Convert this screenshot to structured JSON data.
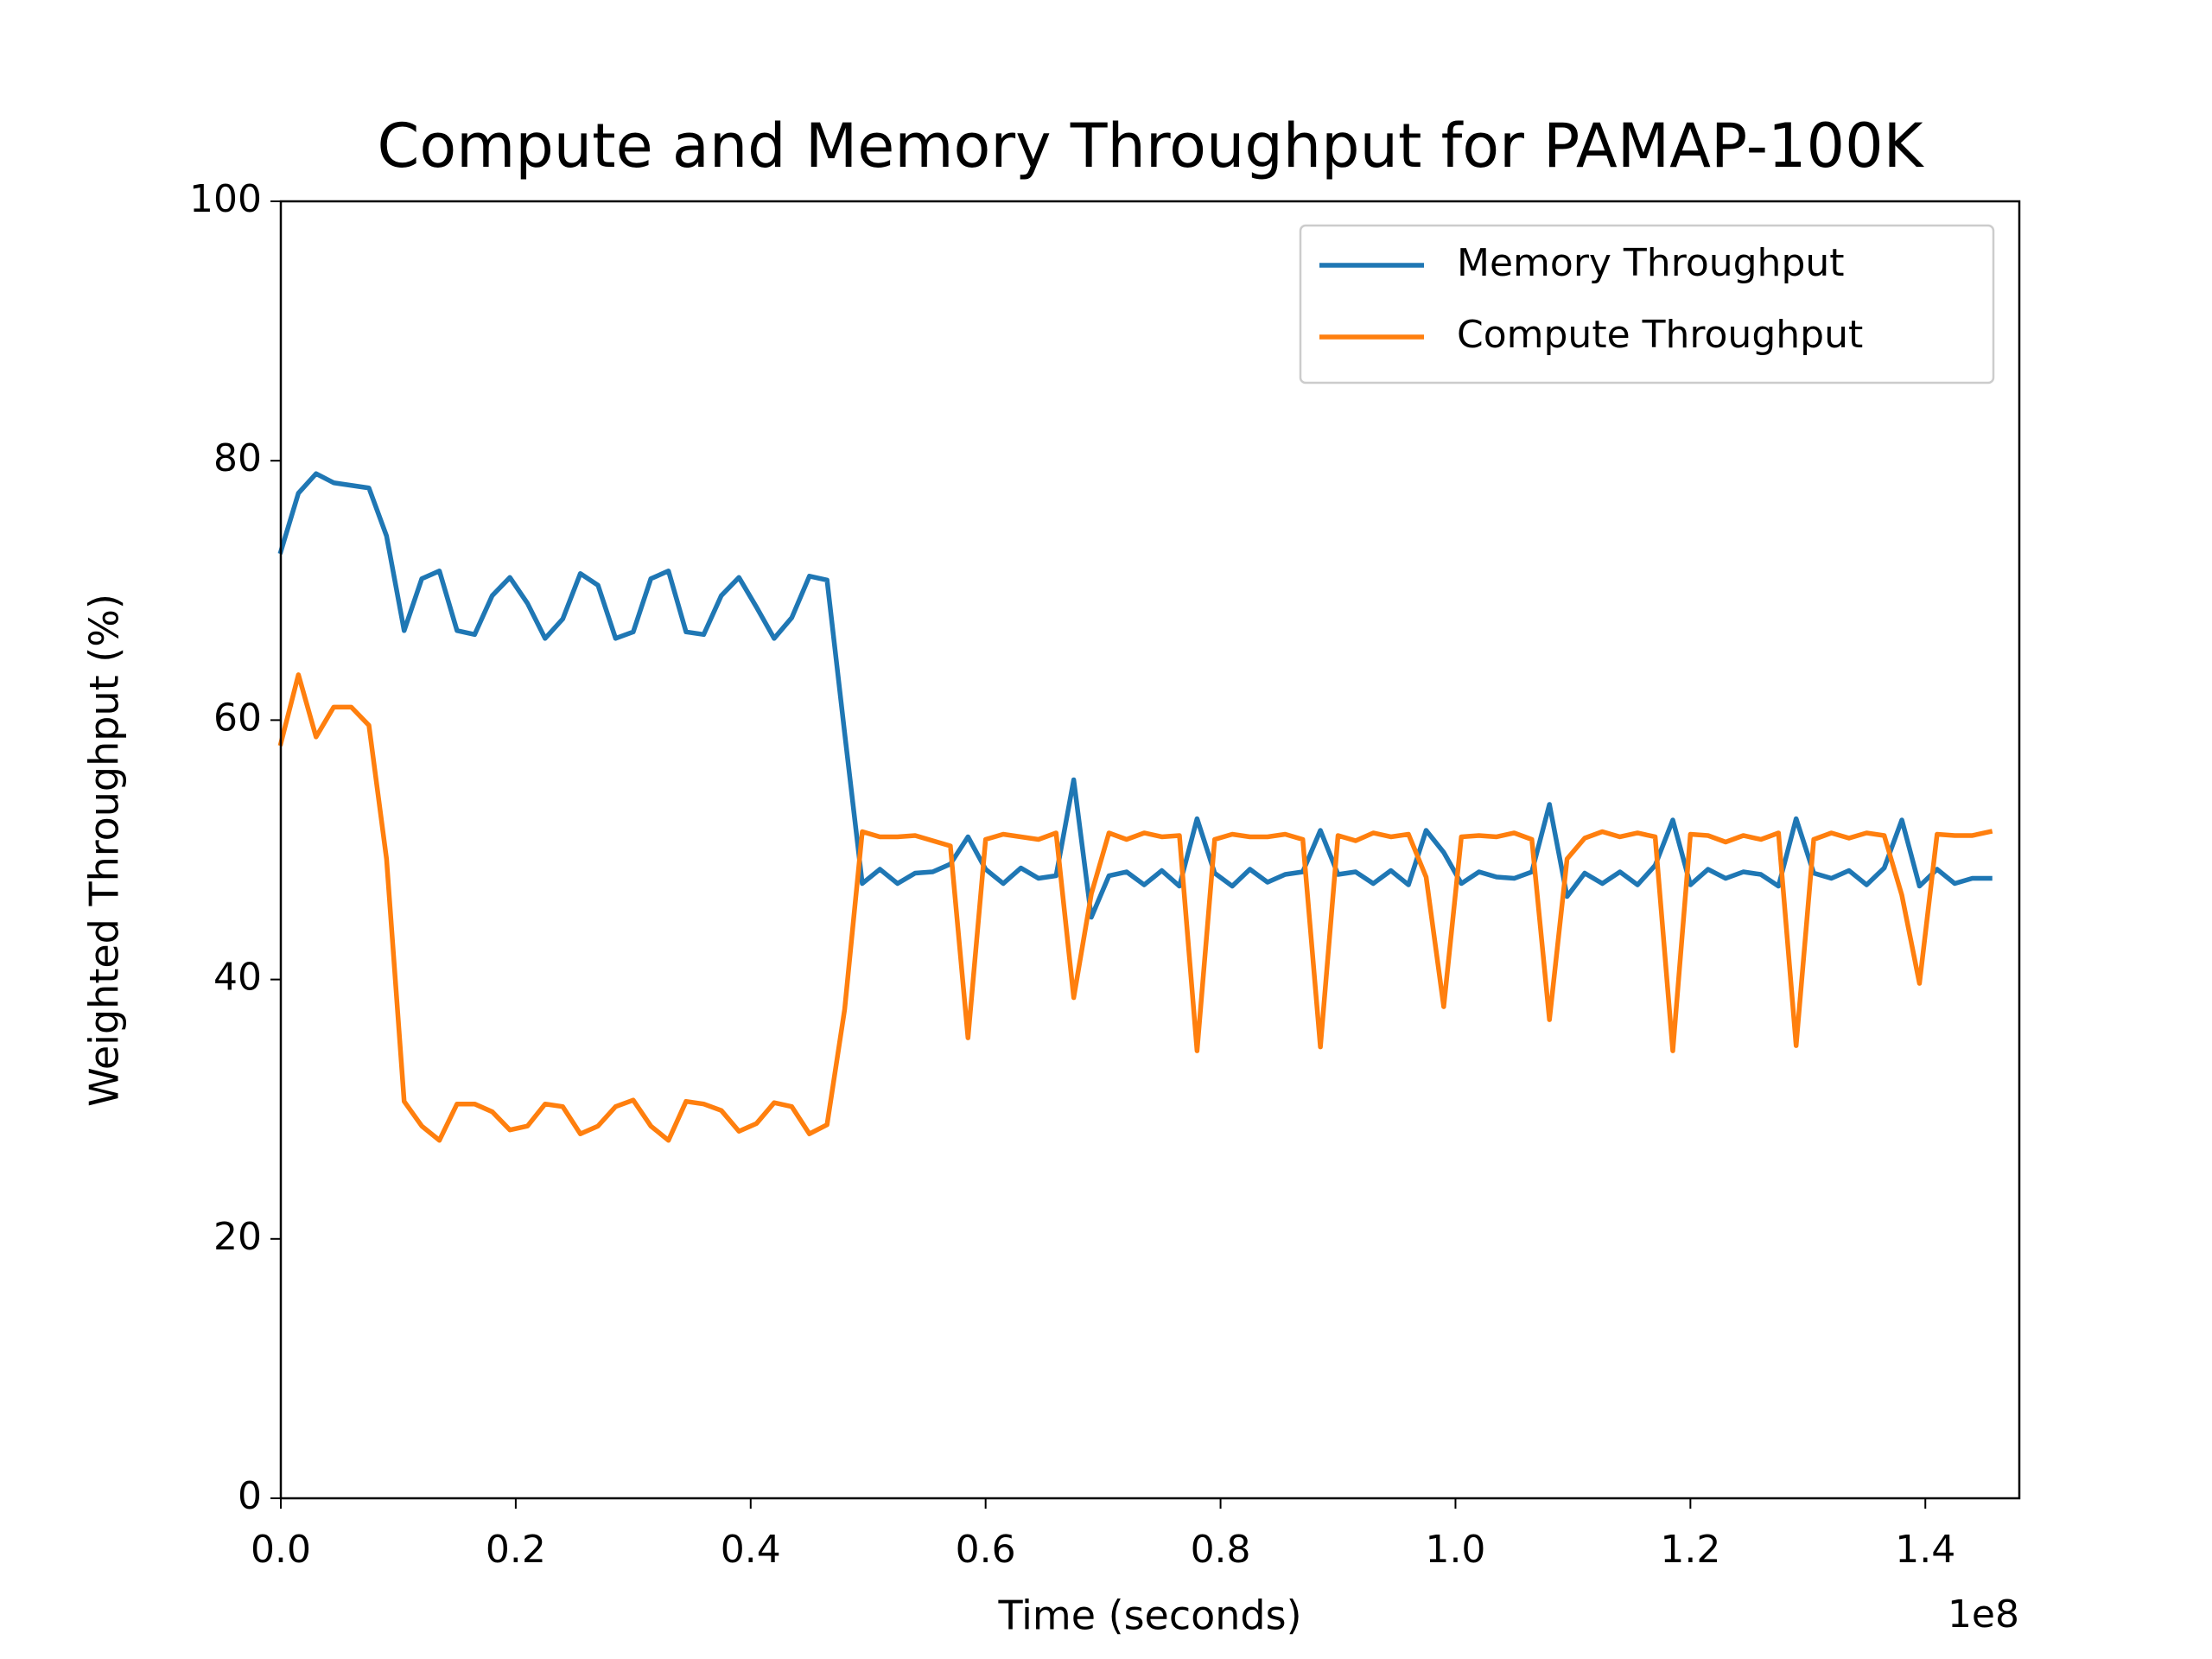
{
  "chart_data": {
    "type": "line",
    "title": "Compute and Memory Throughput for PAMAP-100K",
    "xlabel": "Time (seconds)",
    "ylabel": "Weighted Throughput (%)",
    "x_offset_label": "1e8",
    "x": [
      0,
      1500000,
      3000000,
      4500000,
      6000000,
      7500000,
      9000000,
      10500000,
      12000000,
      13500000,
      15000000,
      16500000,
      18000000,
      19500000,
      21000000,
      22500000,
      24000000,
      25500000,
      27000000,
      28500000,
      30000000,
      31500000,
      33000000,
      34500000,
      36000000,
      37500000,
      39000000,
      40500000,
      42000000,
      43500000,
      45000000,
      46500000,
      48000000,
      49500000,
      51000000,
      52500000,
      54000000,
      55500000,
      57000000,
      58500000,
      60000000,
      61500000,
      63000000,
      64500000,
      66000000,
      67500000,
      69000000,
      70500000,
      72000000,
      73500000,
      75000000,
      76500000,
      78000000,
      79500000,
      81000000,
      82500000,
      84000000,
      85500000,
      87000000,
      88500000,
      90000000,
      91500000,
      93000000,
      94500000,
      96000000,
      97500000,
      99000000,
      100500000,
      102000000,
      103500000,
      105000000,
      106500000,
      108000000,
      109500000,
      111000000,
      112500000,
      114000000,
      115500000,
      117000000,
      118500000,
      120000000,
      121500000,
      123000000,
      124500000,
      126000000,
      127500000,
      129000000,
      130500000,
      132000000,
      133500000,
      135000000,
      136500000,
      138000000,
      139500000,
      141000000,
      142500000,
      144000000,
      145500000
    ],
    "series": [
      {
        "name": "Memory Throughput",
        "color": "#1f77b4",
        "values": [
          73,
          77.5,
          79,
          78.3,
          78.1,
          77.9,
          74.2,
          66.9,
          70.9,
          71.5,
          66.9,
          66.6,
          69.6,
          71,
          69,
          66.3,
          67.8,
          71.3,
          70.4,
          66.3,
          66.8,
          70.9,
          71.5,
          66.8,
          66.6,
          69.6,
          71,
          68.7,
          66.3,
          67.9,
          71.1,
          70.8,
          59,
          47.4,
          48.5,
          47.4,
          48.2,
          48.3,
          48.9,
          51,
          48.5,
          47.4,
          48.6,
          47.8,
          48,
          55.4,
          44.8,
          48,
          48.3,
          47.3,
          48.4,
          47.2,
          52.4,
          48.2,
          47.2,
          48.5,
          47.5,
          48.1,
          48.3,
          51.5,
          48.1,
          48.3,
          47.4,
          48.4,
          47.3,
          51.5,
          49.8,
          47.4,
          48.3,
          47.9,
          47.8,
          48.3,
          53.5,
          46.4,
          48.2,
          47.4,
          48.3,
          47.3,
          48.8,
          52.3,
          47.3,
          48.5,
          47.8,
          48.3,
          48.1,
          47.2,
          52.4,
          48.2,
          47.8,
          48.4,
          47.3,
          48.6,
          52.3,
          47.2,
          48.5,
          47.4,
          47.8,
          47.8
        ]
      },
      {
        "name": "Compute Throughput",
        "color": "#ff7f0e",
        "values": [
          58.2,
          63.5,
          58.7,
          61,
          61,
          59.6,
          49.3,
          30.6,
          28.7,
          27.6,
          30.4,
          30.4,
          29.8,
          28.4,
          28.7,
          30.4,
          30.2,
          28.1,
          28.7,
          30.2,
          30.7,
          28.7,
          27.6,
          30.6,
          30.4,
          29.9,
          28.3,
          28.9,
          30.5,
          30.2,
          28.1,
          28.8,
          37.7,
          51.4,
          51,
          51,
          51.1,
          50.7,
          50.3,
          35.5,
          50.8,
          51.2,
          51,
          50.8,
          51.3,
          38.6,
          46.6,
          51.3,
          50.8,
          51.3,
          51,
          51.1,
          34.5,
          50.8,
          51.2,
          51,
          51,
          51.2,
          50.8,
          34.8,
          51.1,
          50.7,
          51.3,
          51,
          51.2,
          47.9,
          37.9,
          51,
          51.1,
          51,
          51.3,
          50.8,
          36.9,
          49.3,
          50.9,
          51.4,
          51,
          51.3,
          51,
          34.5,
          51.2,
          51.1,
          50.6,
          51.1,
          50.8,
          51.3,
          34.9,
          50.8,
          51.3,
          50.9,
          51.3,
          51.1,
          46.5,
          39.7,
          51.2,
          51.1,
          51.1,
          51.4
        ]
      }
    ],
    "xlim": [
      0,
      148000000
    ],
    "ylim": [
      0,
      100
    ],
    "xticks": [
      {
        "value": 0,
        "label": "0.0"
      },
      {
        "value": 20000000,
        "label": "0.2"
      },
      {
        "value": 40000000,
        "label": "0.4"
      },
      {
        "value": 60000000,
        "label": "0.6"
      },
      {
        "value": 80000000,
        "label": "0.8"
      },
      {
        "value": 100000000,
        "label": "1.0"
      },
      {
        "value": 120000000,
        "label": "1.2"
      },
      {
        "value": 140000000,
        "label": "1.4"
      }
    ],
    "yticks": [
      0,
      20,
      40,
      60,
      80,
      100
    ],
    "legend": "upper right",
    "grid": false
  }
}
